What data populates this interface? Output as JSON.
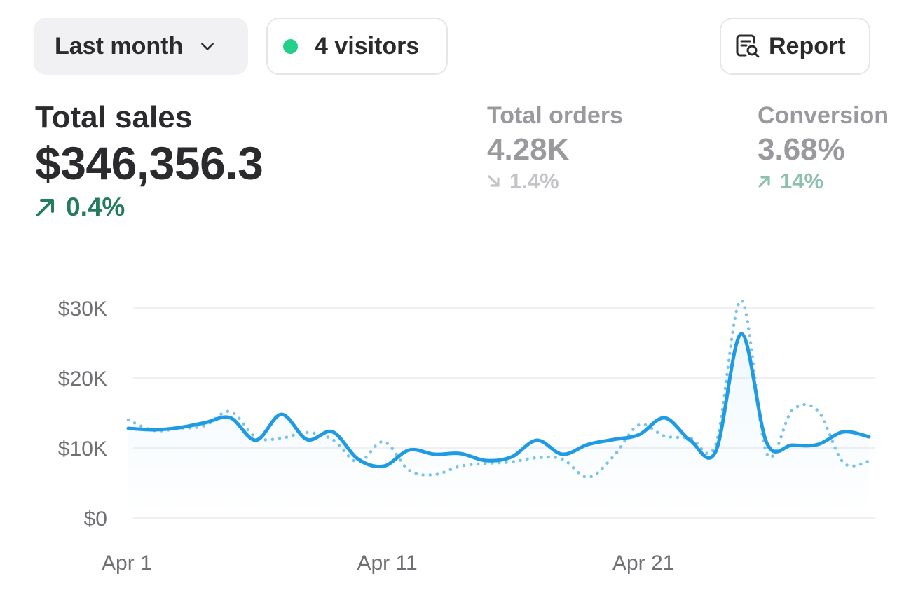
{
  "toolbar": {
    "range_label": "Last month",
    "visitors_label": "4 visitors",
    "report_label": "Report",
    "icons": {
      "range": "chevron-down-icon",
      "visitors": "live-dot-icon",
      "report": "report-search-icon"
    },
    "colors": {
      "live_dot": "#22d08a"
    }
  },
  "metrics": {
    "total_sales": {
      "label": "Total sales",
      "value": "$346,356.3",
      "delta": "0.4%",
      "direction": "up",
      "color": "#257b5d"
    },
    "total_orders": {
      "label": "Total orders",
      "value": "4.28K",
      "delta": "1.4%",
      "direction": "down"
    },
    "conversion": {
      "label": "Conversion",
      "value": "3.68%",
      "delta": "14%",
      "direction": "up"
    }
  },
  "chart_data": {
    "type": "line",
    "x": [
      1,
      2,
      3,
      4,
      5,
      6,
      7,
      8,
      9,
      10,
      11,
      12,
      13,
      14,
      15,
      16,
      17,
      18,
      19,
      20,
      21,
      22,
      23,
      24,
      25,
      26,
      27,
      28,
      29,
      30
    ],
    "xticks": [
      {
        "x": 1,
        "label": "Apr 1"
      },
      {
        "x": 11,
        "label": "Apr 11"
      },
      {
        "x": 21,
        "label": "Apr 21"
      }
    ],
    "yticks": [
      {
        "value": 0,
        "label": "$0"
      },
      {
        "value": 10000,
        "label": "$10K"
      },
      {
        "value": 20000,
        "label": "$20K"
      },
      {
        "value": 30000,
        "label": "$30K"
      }
    ],
    "ylim": [
      0,
      30000
    ],
    "grid": true,
    "series": [
      {
        "style": "solid",
        "color": "#1e9be2",
        "values": [
          12800,
          12600,
          12900,
          13600,
          14300,
          11100,
          14800,
          11200,
          12300,
          8400,
          7400,
          9700,
          9100,
          9200,
          8200,
          8700,
          11100,
          9100,
          10500,
          11200,
          11900,
          14300,
          11100,
          9500,
          26300,
          10700,
          10400,
          10500,
          12300,
          11600
        ]
      },
      {
        "style": "dotted",
        "color": "#7cc3ec",
        "values": [
          14000,
          12500,
          12800,
          13200,
          15200,
          11500,
          11400,
          12200,
          11200,
          8000,
          10900,
          6800,
          6200,
          7400,
          7800,
          8000,
          8600,
          8400,
          5800,
          8800,
          13300,
          11700,
          11400,
          10500,
          31100,
          9200,
          15400,
          15300,
          7900,
          8100
        ]
      }
    ]
  }
}
